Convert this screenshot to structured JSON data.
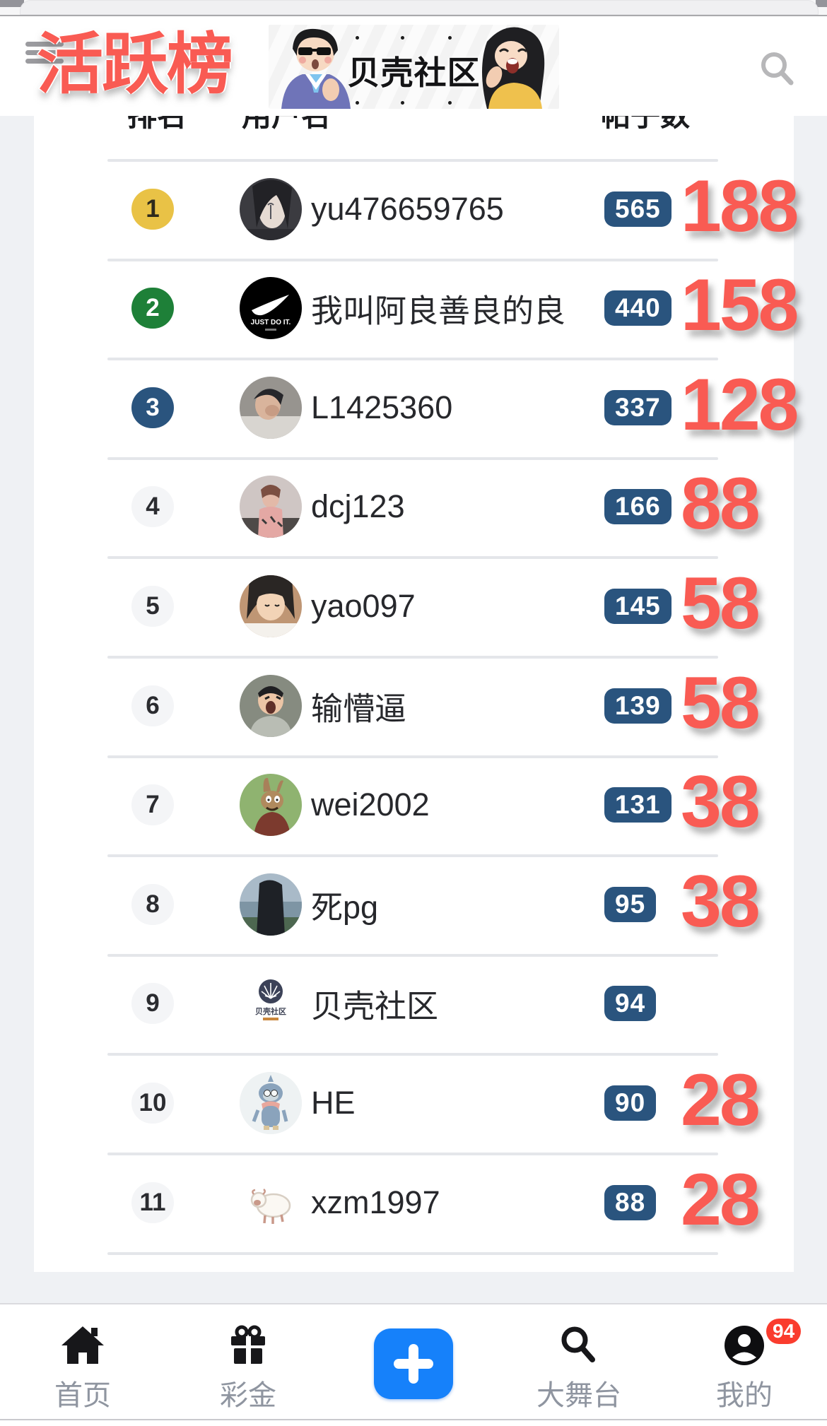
{
  "colors": {
    "accent_red": "#f95b53",
    "rank_gold": "#e9c246",
    "rank_green": "#1e8038",
    "rank_navy": "#2a547e",
    "badge_navy": "#2a547e",
    "plus_blue": "#1681fa",
    "badge_red": "#fa3c2e"
  },
  "header": {
    "title": "活跃榜",
    "banner_title": "贝壳社区",
    "menu_icon": "hamburger-menu-icon",
    "search_icon": "search-icon"
  },
  "table": {
    "columns": [
      "排名",
      "用户名",
      "帖子数"
    ],
    "rows": [
      {
        "rank": "1",
        "rank_style": "gold",
        "username": "yu476659765",
        "posts": "565",
        "reward": "188",
        "avatar": "portrait-dark-girl"
      },
      {
        "rank": "2",
        "rank_style": "green",
        "username": "我叫阿良善良的良",
        "posts": "440",
        "reward": "158",
        "avatar": "nike-logo",
        "avatar_text": "JUST DO IT."
      },
      {
        "rank": "3",
        "rank_style": "navy",
        "username": "L1425360",
        "posts": "337",
        "reward": "128",
        "avatar": "man-photo"
      },
      {
        "rank": "4",
        "rank_style": "plain",
        "username": "dcj123",
        "posts": "166",
        "reward": "88",
        "avatar": "selfie-girl"
      },
      {
        "rank": "5",
        "rank_style": "plain",
        "username": "yao097",
        "posts": "145",
        "reward": "58",
        "avatar": "girl-face"
      },
      {
        "rank": "6",
        "rank_style": "plain",
        "username": "输懵逼",
        "posts": "139",
        "reward": "58",
        "avatar": "yelling-man"
      },
      {
        "rank": "7",
        "rank_style": "plain",
        "username": "wei2002",
        "posts": "131",
        "reward": "38",
        "avatar": "cartoon-rabbit"
      },
      {
        "rank": "8",
        "rank_style": "plain",
        "username": "死pg",
        "posts": "95",
        "reward": "38",
        "avatar": "seaside-back"
      },
      {
        "rank": "9",
        "rank_style": "plain",
        "username": "贝壳社区",
        "posts": "94",
        "reward": null,
        "avatar": "shell-community-logo",
        "avatar_text": "贝壳社区"
      },
      {
        "rank": "10",
        "rank_style": "plain",
        "username": "HE",
        "posts": "90",
        "reward": "28",
        "avatar": "blue-mascot"
      },
      {
        "rank": "11",
        "rank_style": "plain",
        "username": "xzm1997",
        "posts": "88",
        "reward": "28",
        "avatar": "cartoon-sheep"
      }
    ]
  },
  "nav": {
    "items": [
      {
        "label": "首页",
        "icon": "home-icon"
      },
      {
        "label": "彩金",
        "icon": "gift-icon"
      },
      {
        "label": "",
        "icon": "plus-icon"
      },
      {
        "label": "大舞台",
        "icon": "search-icon"
      },
      {
        "label": "我的",
        "icon": "profile-icon",
        "badge": "94"
      }
    ]
  }
}
